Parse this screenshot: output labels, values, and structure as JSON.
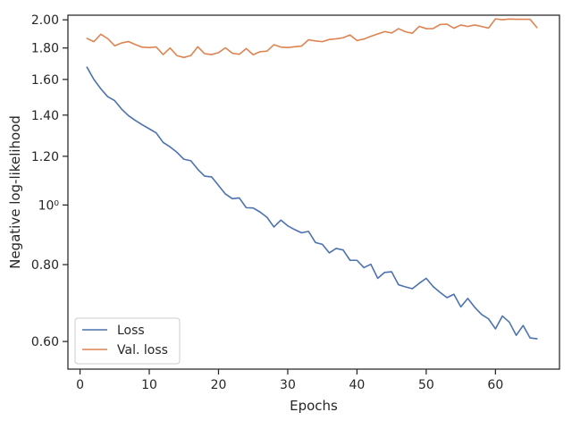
{
  "chart_data": {
    "type": "line",
    "title": "",
    "xlabel": "Epochs",
    "ylabel": "Negative log-likelihood",
    "xlim": [
      -1.75,
      69.25
    ],
    "ylim": [
      0.541,
      2.035
    ],
    "yscale": "log",
    "grid": false,
    "legend_position": "lower-left",
    "xticks": [
      0,
      10,
      20,
      30,
      40,
      50,
      60
    ],
    "xtick_labels": [
      "0",
      "10",
      "20",
      "30",
      "40",
      "50",
      "60"
    ],
    "yticks": [
      0.6,
      0.8,
      1.0,
      1.2,
      1.4,
      1.6,
      1.8,
      2.0
    ],
    "ytick_labels": [
      "0.60",
      "0.80",
      "10⁰",
      "1.20",
      "1.40",
      "1.60",
      "1.80",
      "2.00"
    ],
    "x": [
      1,
      2,
      3,
      4,
      5,
      6,
      7,
      8,
      9,
      10,
      11,
      12,
      13,
      14,
      15,
      16,
      17,
      18,
      19,
      20,
      21,
      22,
      23,
      24,
      25,
      26,
      27,
      28,
      29,
      30,
      31,
      32,
      33,
      34,
      35,
      36,
      37,
      38,
      39,
      40,
      41,
      42,
      43,
      44,
      45,
      46,
      47,
      48,
      49,
      50,
      51,
      52,
      53,
      54,
      55,
      56,
      57,
      58,
      59,
      60,
      61,
      62,
      63,
      64,
      65,
      66
    ],
    "series": [
      {
        "name": "Loss",
        "color": "#4c72b0",
        "values": [
          1.675,
          1.6,
          1.545,
          1.5,
          1.478,
          1.432,
          1.397,
          1.372,
          1.35,
          1.33,
          1.31,
          1.264,
          1.243,
          1.218,
          1.187,
          1.18,
          1.143,
          1.114,
          1.111,
          1.076,
          1.042,
          1.024,
          1.027,
          0.99,
          0.989,
          0.974,
          0.955,
          0.921,
          0.945,
          0.925,
          0.912,
          0.901,
          0.906,
          0.869,
          0.863,
          0.836,
          0.85,
          0.845,
          0.813,
          0.813,
          0.791,
          0.801,
          0.76,
          0.777,
          0.779,
          0.742,
          0.736,
          0.731,
          0.746,
          0.76,
          0.737,
          0.721,
          0.707,
          0.716,
          0.683,
          0.705,
          0.682,
          0.664,
          0.653,
          0.629,
          0.66,
          0.645,
          0.614,
          0.637,
          0.608,
          0.606
        ]
      },
      {
        "name": "Val. loss",
        "color": "#dd8452",
        "values": [
          1.866,
          1.843,
          1.895,
          1.864,
          1.815,
          1.834,
          1.844,
          1.823,
          1.805,
          1.803,
          1.807,
          1.756,
          1.8,
          1.749,
          1.737,
          1.75,
          1.808,
          1.762,
          1.756,
          1.769,
          1.801,
          1.765,
          1.758,
          1.796,
          1.755,
          1.775,
          1.779,
          1.822,
          1.806,
          1.803,
          1.808,
          1.813,
          1.856,
          1.848,
          1.843,
          1.858,
          1.863,
          1.87,
          1.89,
          1.851,
          1.861,
          1.88,
          1.897,
          1.914,
          1.904,
          1.935,
          1.913,
          1.902,
          1.952,
          1.935,
          1.936,
          1.965,
          1.968,
          1.938,
          1.962,
          1.951,
          1.962,
          1.951,
          1.939,
          2.007,
          2.001,
          2.006,
          2.004,
          2.004,
          2.004,
          1.943
        ]
      }
    ]
  }
}
